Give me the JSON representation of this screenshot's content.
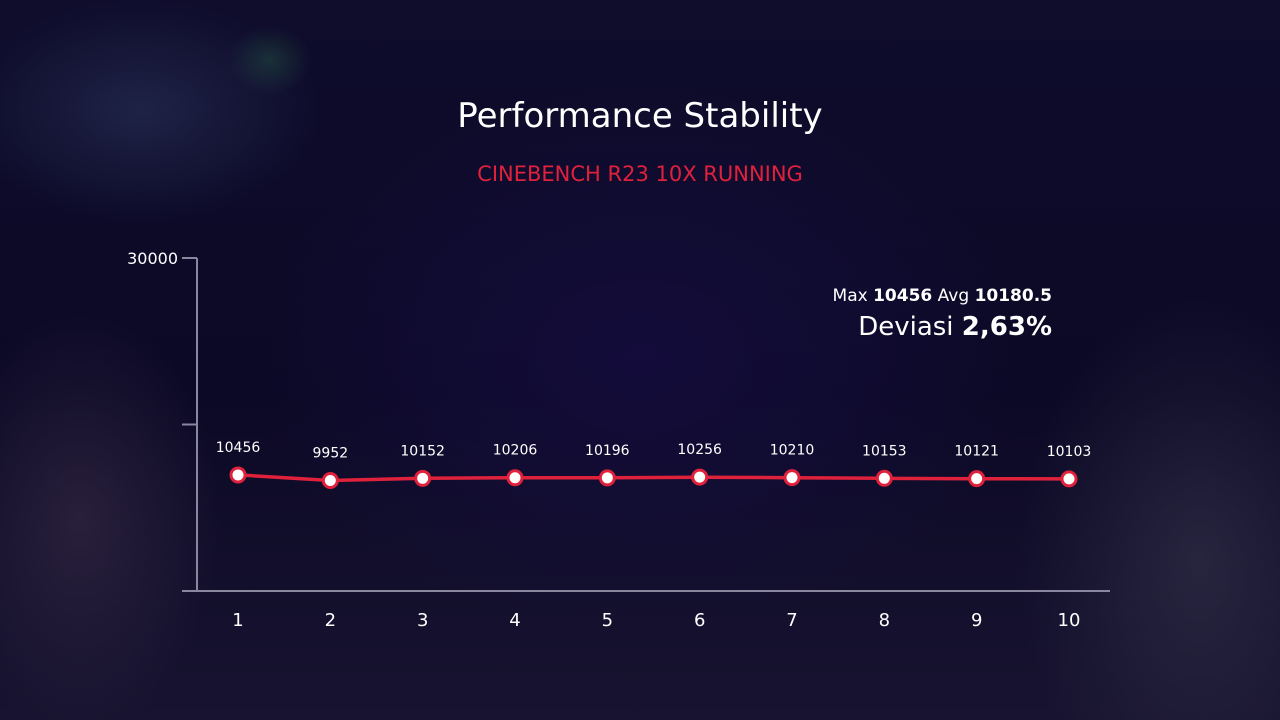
{
  "title": "Performance Stability",
  "subtitle": "CINEBENCH R23 10X RUNNING",
  "stats": {
    "max_label": "Max",
    "max_value": "10456",
    "avg_label": "Avg",
    "avg_value": "10180.5",
    "deviation_label": "Deviasi",
    "deviation_value": "2,63%"
  },
  "colors": {
    "accent": "#e0213c",
    "axis": "#8a86a0",
    "text": "#ffffff"
  },
  "chart_data": {
    "type": "line",
    "categories": [
      "1",
      "2",
      "3",
      "4",
      "5",
      "6",
      "7",
      "8",
      "9",
      "10"
    ],
    "series": [
      {
        "values": [
          10456,
          9952,
          10152,
          10206,
          10196,
          10256,
          10210,
          10153,
          10121,
          10103
        ]
      }
    ],
    "data_labels": [
      "10456",
      "9952",
      "10152",
      "10206",
      "10196",
      "10256",
      "10210",
      "10153",
      "10121",
      "10103"
    ],
    "ylim": [
      0,
      30000
    ],
    "y_tick_labels": [
      "30000"
    ],
    "grid": false,
    "legend": "none"
  }
}
